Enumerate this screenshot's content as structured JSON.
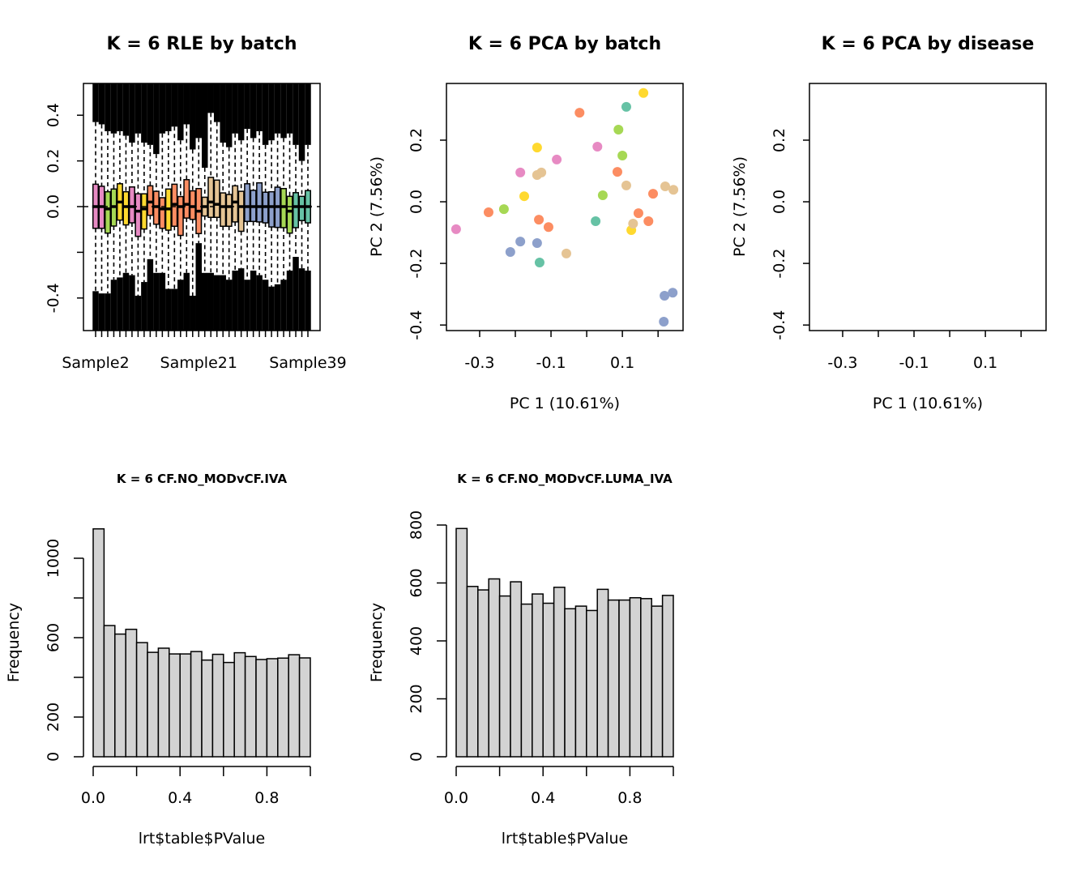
{
  "colors": {
    "pink": "#E78AC3",
    "green": "#A6D854",
    "yellow": "#FFD92F",
    "orange": "#FC8D62",
    "tan": "#E5C494",
    "blue": "#8DA0CB",
    "teal": "#66C2A5",
    "hist_fill": "#D3D3D3"
  },
  "chart_data": [
    {
      "type": "boxplot",
      "title": "K = 6 RLE by batch",
      "xlabel": "",
      "ylabel": "",
      "ylim": [
        -0.543,
        0.539
      ],
      "yticks": [
        0.4,
        0.2,
        0.0,
        -0.2,
        -0.4
      ],
      "ytick_labels": [
        "0.4",
        "0.2",
        "0.0",
        "",
        "-0.4"
      ],
      "xtick_labels": [
        {
          "index": 0,
          "label": "Sample2"
        },
        {
          "index": 17,
          "label": "Sample21"
        },
        {
          "index": 35,
          "label": "Sample39"
        }
      ],
      "colors": [
        "pink",
        "pink",
        "green",
        "green",
        "yellow",
        "yellow",
        "pink",
        "pink",
        "yellow",
        "orange",
        "orange",
        "orange",
        "yellow",
        "orange",
        "orange",
        "orange",
        "orange",
        "orange",
        "tan",
        "tan",
        "tan",
        "tan",
        "tan",
        "tan",
        "tan",
        "blue",
        "blue",
        "blue",
        "blue",
        "blue",
        "blue",
        "green",
        "green",
        "teal",
        "teal",
        "teal"
      ],
      "q3": [
        0.098,
        0.089,
        0.065,
        0.077,
        0.1,
        0.065,
        0.086,
        0.056,
        0.056,
        0.091,
        0.067,
        0.039,
        0.077,
        0.098,
        0.044,
        0.118,
        0.069,
        0.079,
        0.041,
        0.128,
        0.116,
        0.06,
        0.053,
        0.091,
        0.067,
        0.1,
        0.071,
        0.104,
        0.063,
        0.065,
        0.085,
        0.079,
        0.045,
        0.061,
        0.045,
        0.07
      ],
      "q1": [
        -0.095,
        -0.095,
        -0.116,
        -0.085,
        -0.059,
        -0.08,
        -0.071,
        -0.13,
        -0.098,
        -0.038,
        -0.077,
        -0.095,
        -0.103,
        -0.086,
        -0.126,
        -0.05,
        -0.056,
        -0.118,
        -0.041,
        -0.047,
        -0.047,
        -0.086,
        -0.086,
        -0.067,
        -0.108,
        -0.065,
        -0.065,
        -0.067,
        -0.071,
        -0.089,
        -0.091,
        -0.092,
        -0.116,
        -0.092,
        -0.061,
        -0.071
      ],
      "median": [
        0,
        0,
        -0.01,
        0,
        0.02,
        0,
        0,
        -0.02,
        -0.01,
        0.02,
        0,
        -0.01,
        -0.01,
        0.01,
        0,
        0.01,
        0,
        -0.02,
        0,
        0.02,
        0.01,
        0,
        0,
        0.02,
        0,
        0,
        0,
        0,
        0,
        0,
        0,
        0,
        -0.02,
        0,
        0,
        0
      ],
      "upper_whisker": [
        0.37,
        0.36,
        0.33,
        0.32,
        0.33,
        0.31,
        0.28,
        0.32,
        0.28,
        0.27,
        0.23,
        0.32,
        0.33,
        0.35,
        0.29,
        0.36,
        0.25,
        0.3,
        0.17,
        0.41,
        0.37,
        0.28,
        0.26,
        0.32,
        0.29,
        0.34,
        0.3,
        0.33,
        0.27,
        0.29,
        0.32,
        0.3,
        0.32,
        0.27,
        0.2,
        0.27
      ],
      "lower_whisker": [
        -0.37,
        -0.38,
        -0.38,
        -0.32,
        -0.31,
        -0.29,
        -0.3,
        -0.39,
        -0.33,
        -0.23,
        -0.29,
        -0.29,
        -0.36,
        -0.36,
        -0.32,
        -0.29,
        -0.39,
        -0.16,
        -0.29,
        -0.29,
        -0.3,
        -0.3,
        -0.32,
        -0.28,
        -0.27,
        -0.32,
        -0.28,
        -0.3,
        -0.32,
        -0.35,
        -0.34,
        -0.32,
        -0.28,
        -0.22,
        -0.27,
        -0.28
      ]
    },
    {
      "type": "scatter",
      "title": "K = 6 PCA by batch",
      "xlabel": "PC 1 (10.61%)",
      "ylabel": "PC 2 (7.56%)",
      "xlim": [
        -0.393,
        0.27
      ],
      "ylim": [
        -0.418,
        0.384
      ],
      "xticks": [
        -0.3,
        -0.2,
        -0.1,
        0.0,
        0.1,
        0.2
      ],
      "xtick_labels": [
        "-0.3",
        "",
        "-0.1",
        "",
        "0.1",
        ""
      ],
      "yticks": [
        0.2,
        0.0,
        -0.2,
        -0.4
      ],
      "ytick_labels": [
        "0.2",
        "0.0",
        "-0.2",
        "-0.4"
      ],
      "points": [
        {
          "x": -0.366,
          "y": -0.089,
          "c": "pink"
        },
        {
          "x": -0.275,
          "y": -0.034,
          "c": "orange"
        },
        {
          "x": -0.232,
          "y": -0.024,
          "c": "green"
        },
        {
          "x": -0.175,
          "y": 0.018,
          "c": "yellow"
        },
        {
          "x": -0.186,
          "y": 0.095,
          "c": "pink"
        },
        {
          "x": -0.139,
          "y": 0.176,
          "c": "yellow"
        },
        {
          "x": -0.139,
          "y": 0.087,
          "c": "tan"
        },
        {
          "x": -0.127,
          "y": 0.095,
          "c": "tan"
        },
        {
          "x": -0.084,
          "y": 0.137,
          "c": "pink"
        },
        {
          "x": -0.134,
          "y": -0.058,
          "c": "orange"
        },
        {
          "x": -0.107,
          "y": -0.082,
          "c": "orange"
        },
        {
          "x": -0.186,
          "y": -0.129,
          "c": "blue"
        },
        {
          "x": -0.214,
          "y": -0.163,
          "c": "blue"
        },
        {
          "x": -0.139,
          "y": -0.134,
          "c": "blue"
        },
        {
          "x": -0.132,
          "y": -0.197,
          "c": "teal"
        },
        {
          "x": -0.057,
          "y": -0.168,
          "c": "tan"
        },
        {
          "x": -0.02,
          "y": 0.289,
          "c": "orange"
        },
        {
          "x": 0.03,
          "y": 0.179,
          "c": "pink"
        },
        {
          "x": 0.045,
          "y": 0.021,
          "c": "green"
        },
        {
          "x": 0.025,
          "y": -0.063,
          "c": "teal"
        },
        {
          "x": 0.111,
          "y": 0.308,
          "c": "teal"
        },
        {
          "x": 0.159,
          "y": 0.353,
          "c": "yellow"
        },
        {
          "x": 0.089,
          "y": 0.234,
          "c": "green"
        },
        {
          "x": 0.1,
          "y": 0.15,
          "c": "green"
        },
        {
          "x": 0.086,
          "y": 0.097,
          "c": "orange"
        },
        {
          "x": 0.111,
          "y": 0.053,
          "c": "tan"
        },
        {
          "x": 0.186,
          "y": 0.026,
          "c": "orange"
        },
        {
          "x": 0.22,
          "y": 0.05,
          "c": "tan"
        },
        {
          "x": 0.243,
          "y": 0.039,
          "c": "tan"
        },
        {
          "x": 0.145,
          "y": -0.037,
          "c": "orange"
        },
        {
          "x": 0.173,
          "y": -0.063,
          "c": "orange"
        },
        {
          "x": 0.125,
          "y": -0.092,
          "c": "yellow"
        },
        {
          "x": 0.13,
          "y": -0.071,
          "c": "tan"
        },
        {
          "x": 0.218,
          "y": -0.305,
          "c": "blue"
        },
        {
          "x": 0.241,
          "y": -0.295,
          "c": "blue"
        },
        {
          "x": 0.216,
          "y": -0.389,
          "c": "blue"
        }
      ]
    },
    {
      "type": "scatter",
      "title": "K = 6 PCA by disease",
      "xlabel": "PC 1 (10.61%)",
      "ylabel": "PC 2 (7.56%)",
      "xlim": [
        -0.393,
        0.27
      ],
      "ylim": [
        -0.418,
        0.384
      ],
      "xticks": [
        -0.3,
        -0.2,
        -0.1,
        0.0,
        0.1,
        0.2
      ],
      "xtick_labels": [
        "-0.3",
        "",
        "-0.1",
        "",
        "0.1",
        ""
      ],
      "yticks": [
        0.2,
        0.0,
        -0.2,
        -0.4
      ],
      "ytick_labels": [
        "0.2",
        "0.0",
        "-0.2",
        "-0.4"
      ],
      "points": []
    },
    {
      "type": "bar",
      "title": "K = 6 CF.NO_MODvCF.IVA",
      "xlabel": "lrt$table$PValue",
      "ylabel": "Frequency",
      "bin_width": 0.05,
      "xlim": [
        0,
        1
      ],
      "xticks": [
        0,
        0.2,
        0.4,
        0.6,
        0.8,
        1.0
      ],
      "xtick_labels": [
        "0.0",
        "",
        "0.4",
        "",
        "0.8",
        ""
      ],
      "yticks": [
        0,
        200,
        400,
        600,
        800,
        1000
      ],
      "ytick_labels": [
        "0",
        "200",
        "",
        "600",
        "",
        "1000"
      ],
      "values": [
        1148,
        661,
        618,
        642,
        575,
        526,
        547,
        518,
        518,
        530,
        487,
        516,
        475,
        524,
        505,
        490,
        494,
        497,
        514,
        498
      ]
    },
    {
      "type": "bar",
      "title": "K = 6 CF.NO_MODvCF.LUMA_IVA",
      "xlabel": "lrt$table$PValue",
      "ylabel": "Frequency",
      "bin_width": 0.05,
      "xlim": [
        0,
        1
      ],
      "xticks": [
        0,
        0.2,
        0.4,
        0.6,
        0.8,
        1.0
      ],
      "xtick_labels": [
        "0.0",
        "",
        "0.4",
        "",
        "0.8",
        ""
      ],
      "yticks": [
        0,
        200,
        400,
        600,
        800
      ],
      "ytick_labels": [
        "0",
        "200",
        "400",
        "600",
        "800"
      ],
      "values": [
        788,
        588,
        576,
        614,
        555,
        604,
        527,
        562,
        530,
        585,
        511,
        520,
        505,
        578,
        541,
        541,
        549,
        546,
        520,
        557
      ]
    }
  ]
}
